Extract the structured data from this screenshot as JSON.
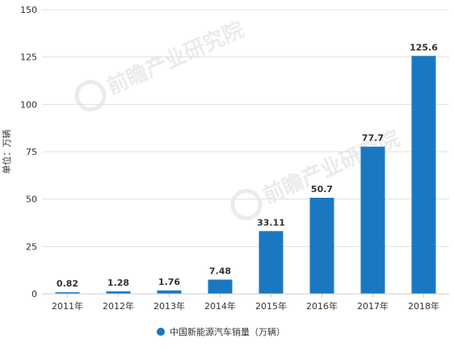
{
  "chart_data": {
    "type": "bar",
    "categories": [
      "2011年",
      "2012年",
      "2013年",
      "2014年",
      "2015年",
      "2016年",
      "2017年",
      "2018年"
    ],
    "series": [
      {
        "name": "中国新能源汽车销量（万辆）",
        "values": [
          0.82,
          1.28,
          1.76,
          7.48,
          33.11,
          50.7,
          77.7,
          125.6
        ]
      }
    ],
    "data_labels": [
      "0.82",
      "1.28",
      "1.76",
      "7.48",
      "33.11",
      "50.7",
      "77.7",
      "125.6"
    ],
    "ylabel": "单位：万辆",
    "xlabel": "",
    "title": "",
    "ylim": [
      0,
      150
    ],
    "yticks": [
      0,
      25,
      50,
      75,
      100,
      125,
      150
    ],
    "grid": true,
    "legend_position": "bottom-center",
    "colors": {
      "bar": "#1a78c2",
      "grid": "#e0e0e0",
      "axis": "#c8c8c8",
      "text": "#333333"
    }
  },
  "watermark": {
    "text": "前瞻产业研究院"
  }
}
